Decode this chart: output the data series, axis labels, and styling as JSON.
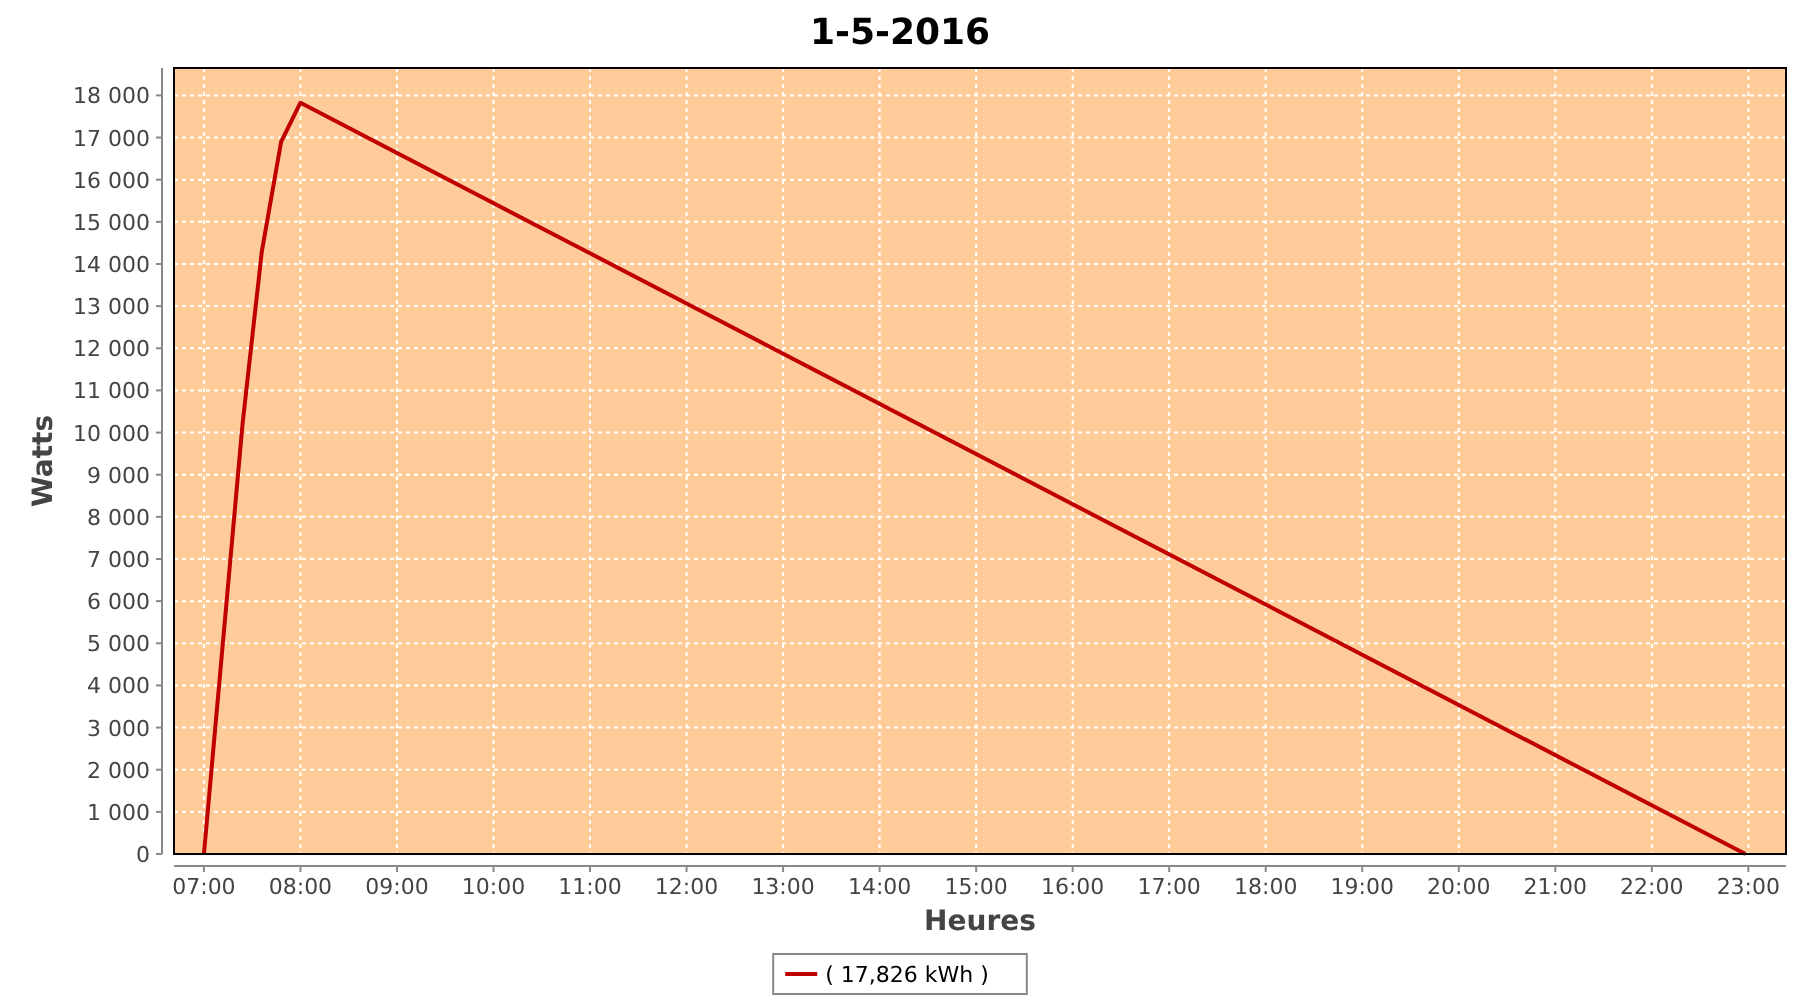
{
  "chart_data": {
    "type": "line",
    "title": "1-5-2016",
    "xlabel": "Heures",
    "ylabel": "Watts",
    "x": [
      7.0,
      7.4,
      7.6,
      7.8,
      8.0,
      22.97
    ],
    "series": [
      {
        "name": "( 17,826 kWh )",
        "color": "#c00000",
        "values": [
          0,
          10200,
          14300,
          16900,
          17826,
          0
        ]
      }
    ],
    "xlim": [
      6.69,
      23.39
    ],
    "xticks": [
      {
        "value": 7,
        "label": "07:00"
      },
      {
        "value": 8,
        "label": "08:00"
      },
      {
        "value": 9,
        "label": "09:00"
      },
      {
        "value": 10,
        "label": "10:00"
      },
      {
        "value": 11,
        "label": "11:00"
      },
      {
        "value": 12,
        "label": "12:00"
      },
      {
        "value": 13,
        "label": "13:00"
      },
      {
        "value": 14,
        "label": "14:00"
      },
      {
        "value": 15,
        "label": "15:00"
      },
      {
        "value": 16,
        "label": "16:00"
      },
      {
        "value": 17,
        "label": "17:00"
      },
      {
        "value": 18,
        "label": "18:00"
      },
      {
        "value": 19,
        "label": "19:00"
      },
      {
        "value": 20,
        "label": "20:00"
      },
      {
        "value": 21,
        "label": "21:00"
      },
      {
        "value": 22,
        "label": "22:00"
      },
      {
        "value": 23,
        "label": "23:00"
      }
    ],
    "ylim": [
      0,
      18650
    ],
    "yticks": [
      0,
      {
        "value": 1000,
        "label": "1 000"
      },
      {
        "value": 2000,
        "label": "2 000"
      },
      {
        "value": 3000,
        "label": "3 000"
      },
      {
        "value": 4000,
        "label": "4 000"
      },
      {
        "value": 5000,
        "label": "5 000"
      },
      {
        "value": 6000,
        "label": "6 000"
      },
      {
        "value": 7000,
        "label": "7 000"
      },
      {
        "value": 8000,
        "label": "8 000"
      },
      {
        "value": 9000,
        "label": "9 000"
      },
      {
        "value": 10000,
        "label": "10 000"
      },
      {
        "value": 11000,
        "label": "11 000"
      },
      {
        "value": 12000,
        "label": "12 000"
      },
      {
        "value": 13000,
        "label": "13 000"
      },
      {
        "value": 14000,
        "label": "14 000"
      },
      {
        "value": 15000,
        "label": "15 000"
      },
      {
        "value": 16000,
        "label": "16 000"
      },
      {
        "value": 17000,
        "label": "17 000"
      },
      {
        "value": 18000,
        "label": "18 000"
      }
    ],
    "grid": true,
    "legend": "bottom",
    "marker": "none",
    "line_style": "solid"
  }
}
